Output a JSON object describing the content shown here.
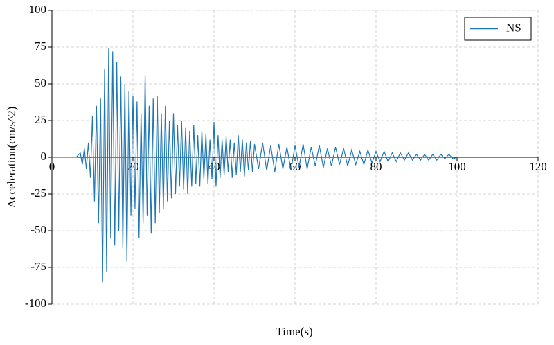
{
  "chart_data": {
    "type": "line",
    "xlabel": "Time(s)",
    "ylabel": "Acceleration(cm/s^2)",
    "xlim": [
      0,
      120
    ],
    "xticks": [
      0,
      20,
      40,
      60,
      80,
      100,
      120
    ],
    "ylim": [
      -100,
      100
    ],
    "yticks": [
      -100,
      -75,
      -50,
      -25,
      0,
      25,
      50,
      75,
      100
    ],
    "grid": true,
    "legend": "upper right",
    "x": [
      0,
      2,
      4,
      6,
      7,
      7.5,
      8,
      8.5,
      9,
      9.5,
      10,
      10.5,
      11,
      11.5,
      12,
      12.5,
      13,
      13.5,
      14,
      14.5,
      15,
      15.5,
      16,
      16.5,
      17,
      17.5,
      18,
      18.5,
      19,
      19.5,
      20,
      20.5,
      21,
      21.5,
      22,
      22.5,
      23,
      23.5,
      24,
      24.5,
      25,
      25.5,
      26,
      26.5,
      27,
      27.5,
      28,
      28.5,
      29,
      29.5,
      30,
      30.5,
      31,
      31.5,
      32,
      32.5,
      33,
      33.5,
      34,
      34.5,
      35,
      35.5,
      36,
      36.5,
      37,
      37.5,
      38,
      38.5,
      39,
      39.5,
      40,
      40.5,
      41,
      41.5,
      42,
      42.5,
      43,
      43.5,
      44,
      44.5,
      45,
      45.5,
      46,
      46.5,
      47,
      47.5,
      48,
      48.5,
      49,
      49.5,
      50,
      51,
      52,
      53,
      54,
      55,
      56,
      57,
      58,
      59,
      60,
      61,
      62,
      63,
      64,
      65,
      66,
      67,
      68,
      69,
      70,
      71,
      72,
      73,
      74,
      75,
      76,
      77,
      78,
      79,
      80,
      81,
      82,
      83,
      84,
      85,
      86,
      87,
      88,
      89,
      90,
      91,
      92,
      93,
      94,
      95,
      96,
      97,
      98,
      99,
      100
    ],
    "series": [
      {
        "name": "NS",
        "color": "#1f77b4",
        "values": [
          0,
          0,
          0,
          0,
          3,
          -5,
          6,
          -8,
          10,
          -14,
          28,
          -30,
          35,
          -45,
          40,
          -85,
          60,
          -78,
          74,
          -55,
          72,
          -60,
          65,
          -50,
          55,
          -62,
          50,
          -71,
          45,
          -40,
          42,
          -35,
          38,
          -55,
          30,
          -45,
          56,
          -40,
          35,
          -52,
          40,
          -45,
          42,
          -38,
          30,
          -35,
          35,
          -30,
          25,
          -28,
          30,
          -25,
          22,
          -20,
          25,
          -22,
          20,
          -25,
          18,
          -20,
          22,
          -18,
          15,
          -20,
          18,
          -15,
          16,
          -18,
          12,
          -15,
          24,
          -20,
          15,
          -14,
          12,
          -12,
          14,
          -10,
          12,
          -14,
          10,
          -12,
          15,
          -10,
          12,
          -13,
          10,
          -9,
          11,
          -10,
          9,
          -8,
          10,
          -9,
          8,
          -10,
          9,
          -8,
          7,
          -9,
          8,
          -7,
          9,
          -8,
          7,
          -6,
          8,
          -7,
          6,
          -6,
          7,
          -5,
          6,
          -6,
          5,
          -5,
          4,
          -5,
          5,
          -4,
          4,
          -3,
          4,
          -3,
          3,
          -3,
          3,
          -2,
          3,
          -2,
          2,
          -2,
          2,
          -2,
          2,
          -2,
          2,
          -1,
          2,
          -1,
          0
        ]
      }
    ]
  }
}
